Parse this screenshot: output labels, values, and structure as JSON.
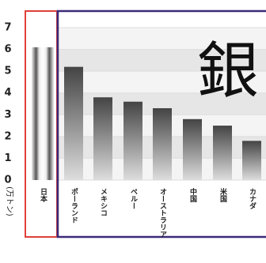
{
  "chart_data": {
    "type": "bar",
    "title": "銀",
    "y_label": "(万トン)",
    "categories": [
      "日本",
      "ポーランド",
      "メキシコ",
      "ペルー",
      "オーストラリア",
      "中国",
      "米国",
      "カナダ"
    ],
    "values": [
      6.1,
      5.2,
      3.8,
      3.6,
      3.3,
      2.8,
      2.5,
      1.8
    ],
    "ylim": [
      0,
      7
    ],
    "yticks": [
      0,
      1,
      2,
      3,
      4,
      5,
      6,
      7
    ],
    "grid": true
  }
}
